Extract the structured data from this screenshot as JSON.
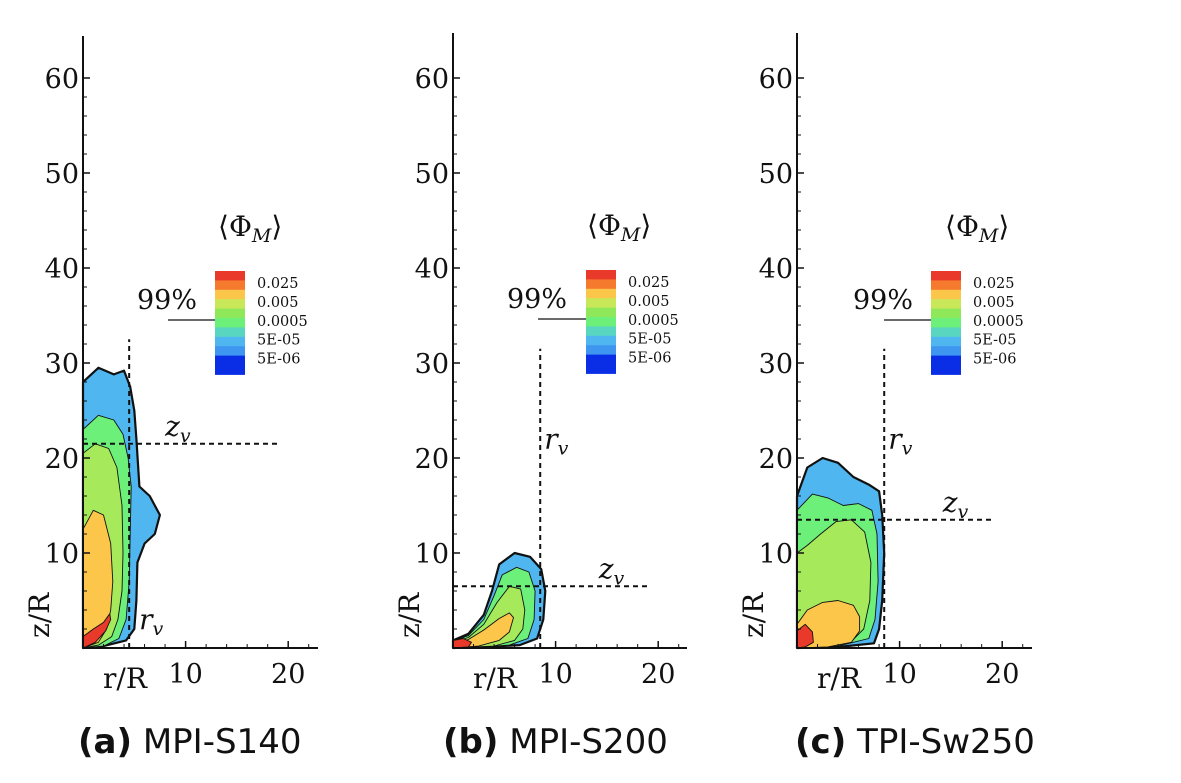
{
  "legend": {
    "title_main": "Φ",
    "title_sub": "M",
    "levels": [
      "0.025",
      "0.005",
      "0.0005",
      "5E-05",
      "5E-06"
    ],
    "colors": [
      "#e8392a",
      "#fbc64a",
      "#8fe85a",
      "#4fb6f0",
      "#0a2ee6"
    ],
    "band_colors": [
      "#e8392a",
      "#fbc64a",
      "#a6ea5c",
      "#6cf07a",
      "#4fb6f0",
      "#0a2ee6"
    ],
    "threshold_label": "99%"
  },
  "annotations": {
    "rv_main": "r",
    "zv_main": "z",
    "sub": "v"
  },
  "chart_data": [
    {
      "type": "contour",
      "panel": "(a)",
      "caption_label": "(a)",
      "caption_name": "MPI-S140",
      "xlabel": "r/R",
      "ylabel": "z/R",
      "xlim": [
        0,
        25
      ],
      "ylim": [
        0,
        65
      ],
      "xticks": [
        "10",
        "20"
      ],
      "yticks": [
        "10",
        "20",
        "30",
        "40",
        "50",
        "60"
      ],
      "xtick_values": [
        10,
        20
      ],
      "ytick_values": [
        10,
        20,
        30,
        40,
        50,
        60
      ],
      "r_v": 4.5,
      "z_v": 21.5,
      "r_v_line_top": 32.5,
      "z_v_line_end": 19
    },
    {
      "type": "contour",
      "panel": "(b)",
      "caption_label": "(b)",
      "caption_name": "MPI-S200",
      "xlabel": "r/R",
      "ylabel": "z/R",
      "xlim": [
        0,
        25
      ],
      "ylim": [
        0,
        65
      ],
      "xticks": [
        "10",
        "20"
      ],
      "yticks": [
        "10",
        "20",
        "30",
        "40",
        "50",
        "60"
      ],
      "xtick_values": [
        10,
        20
      ],
      "ytick_values": [
        10,
        20,
        30,
        40,
        50,
        60
      ],
      "r_v": 8.5,
      "z_v": 6.5,
      "r_v_line_top": 31.5,
      "z_v_line_end": 19
    },
    {
      "type": "contour",
      "panel": "(c)",
      "caption_label": "(c)",
      "caption_name": "TPI-Sw250",
      "xlabel": "r/R",
      "ylabel": "z/R",
      "xlim": [
        0,
        25
      ],
      "ylim": [
        0,
        65
      ],
      "xticks": [
        "10",
        "20"
      ],
      "yticks": [
        "10",
        "20",
        "30",
        "40",
        "50",
        "60"
      ],
      "xtick_values": [
        10,
        20
      ],
      "ytick_values": [
        10,
        20,
        30,
        40,
        50,
        60
      ],
      "r_v": 8.5,
      "z_v": 13.5,
      "r_v_line_top": 31.5,
      "z_v_line_end": 19
    }
  ]
}
